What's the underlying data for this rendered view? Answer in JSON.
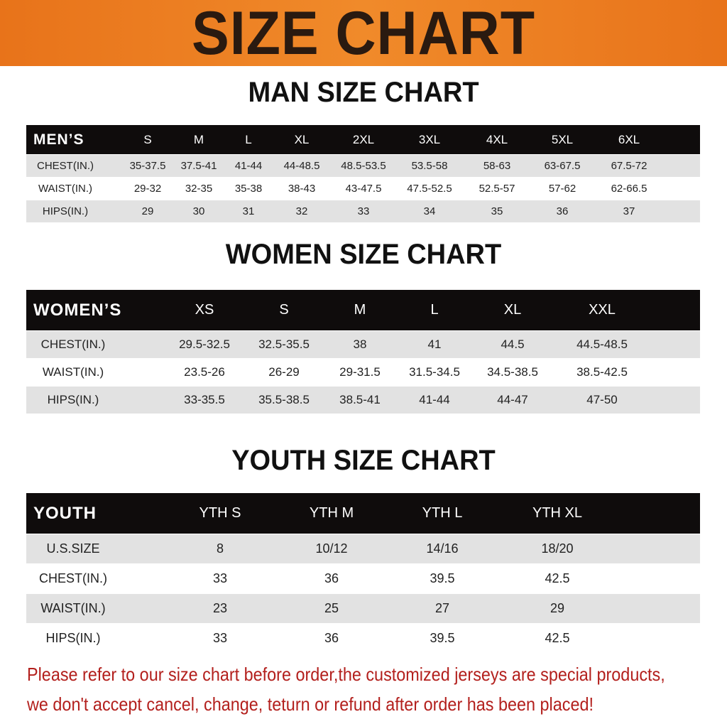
{
  "banner": {
    "title": "SIZE CHART",
    "color": "#e8731a"
  },
  "men": {
    "title": "MAN SIZE CHART",
    "header": [
      "MEN’S",
      "S",
      "M",
      "L",
      "XL",
      "2XL",
      "3XL",
      "4XL",
      "5XL",
      "6XL"
    ],
    "rows": [
      [
        "CHEST(IN.)",
        "35-37.5",
        "37.5-41",
        "41-44",
        "44-48.5",
        "48.5-53.5",
        "53.5-58",
        "58-63",
        "63-67.5",
        "67.5-72"
      ],
      [
        "WAIST(IN.)",
        "29-32",
        "32-35",
        "35-38",
        "38-43",
        "43-47.5",
        "47.5-52.5",
        "52.5-57",
        "57-62",
        "62-66.5"
      ],
      [
        "HIPS(IN.)",
        "29",
        "30",
        "31",
        "32",
        "33",
        "34",
        "35",
        "36",
        "37"
      ]
    ]
  },
  "women": {
    "title": "WOMEN SIZE CHART",
    "header": [
      "WOMEN’S",
      "XS",
      "S",
      "M",
      "L",
      "XL",
      "XXL"
    ],
    "rows": [
      [
        "CHEST(IN.)",
        "29.5-32.5",
        "32.5-35.5",
        "38",
        "41",
        "44.5",
        "44.5-48.5"
      ],
      [
        "WAIST(IN.)",
        "23.5-26",
        "26-29",
        "29-31.5",
        "31.5-34.5",
        "34.5-38.5",
        "38.5-42.5"
      ],
      [
        "HIPS(IN.)",
        "33-35.5",
        "35.5-38.5",
        "38.5-41",
        "41-44",
        "44-47",
        "47-50"
      ]
    ]
  },
  "youth": {
    "title": "YOUTH SIZE CHART",
    "header": [
      "YOUTH",
      "YTH S",
      "YTH M",
      "YTH L",
      "YTH XL"
    ],
    "rows": [
      [
        "U.S.SIZE",
        "8",
        "10/12",
        "14/16",
        "18/20"
      ],
      [
        "CHEST(IN.)",
        "33",
        "36",
        "39.5",
        "42.5"
      ],
      [
        "WAIST(IN.)",
        "23",
        "25",
        "27",
        "29"
      ],
      [
        "HIPS(IN.)",
        "33",
        "36",
        "39.5",
        "42.5"
      ]
    ]
  },
  "notice": {
    "line1": "Please refer to our size chart before order,the customized jerseys are special products,",
    "line2": "we don't accept cancel, change, teturn or refund after order has been placed!",
    "color": "#b3201d"
  }
}
